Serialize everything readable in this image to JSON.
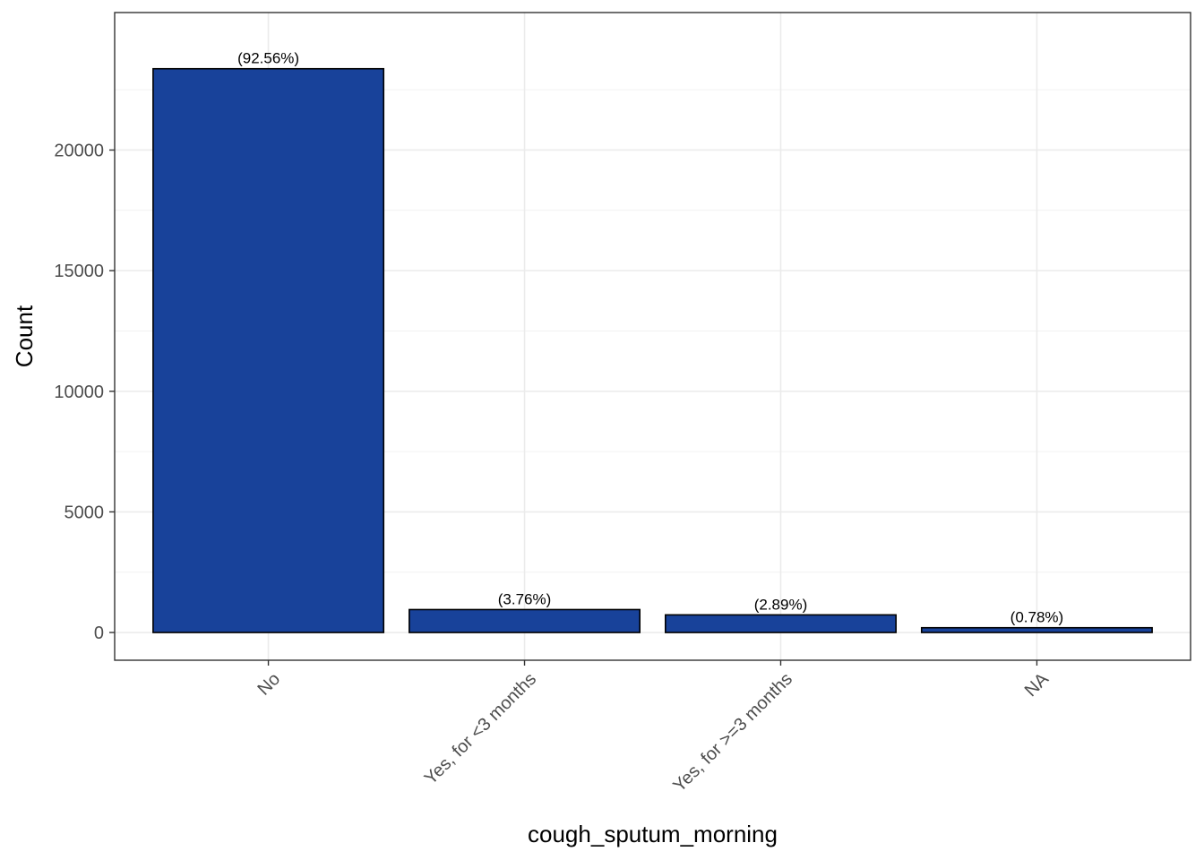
{
  "chart_data": {
    "type": "bar",
    "xlabel": "cough_sputum_morning",
    "ylabel": "Count",
    "categories": [
      "No",
      "Yes, for <3 months",
      "Yes, for >=3 months",
      "NA"
    ],
    "values": [
      23370,
      950,
      730,
      197
    ],
    "data_labels": [
      "(92.56%)",
      "(3.76%)",
      "(2.89%)",
      "(0.78%)"
    ],
    "ylim": [
      -1150,
      25700
    ],
    "yticks": [
      0,
      5000,
      10000,
      15000,
      20000
    ],
    "ytick_labels": [
      "0",
      "5000",
      "10000",
      "15000",
      "20000"
    ],
    "grid": true,
    "legend": "none",
    "colors": {
      "bar_fill": "#18429A",
      "bar_outline": "#000000",
      "grid_major": "#EBEBEB",
      "grid_minor": "#F2F2F2",
      "panel_border": "#333333"
    }
  }
}
